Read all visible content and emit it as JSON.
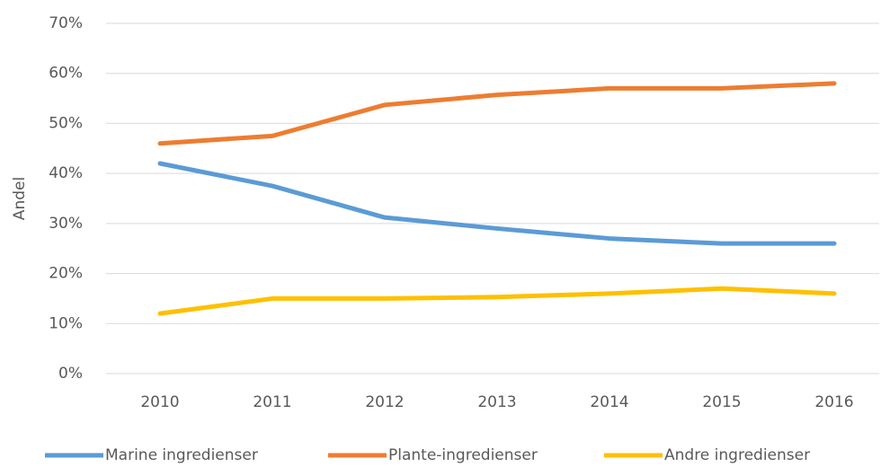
{
  "chart_data": {
    "type": "line",
    "y_label": "Andel",
    "categories": [
      "2010",
      "2011",
      "2012",
      "2013",
      "2014",
      "2015",
      "2016"
    ],
    "series": [
      {
        "name": "Marine ingredienser",
        "color": "#5b9bd5",
        "values": [
          42,
          37.5,
          31.2,
          29,
          27,
          26,
          26
        ]
      },
      {
        "name": "Plante-ingredienser",
        "color": "#ed7d31",
        "values": [
          46,
          47.5,
          53.7,
          55.7,
          57,
          57,
          58
        ]
      },
      {
        "name": "Andre ingredienser",
        "color": "#ffc000",
        "values": [
          12,
          15,
          15,
          15.3,
          16,
          17,
          16
        ]
      }
    ],
    "ylim": [
      0,
      70
    ],
    "yticks": [
      {
        "value": 0,
        "label": "0%"
      },
      {
        "value": 10,
        "label": "10%"
      },
      {
        "value": 20,
        "label": "20%"
      },
      {
        "value": 30,
        "label": "30%"
      },
      {
        "value": 40,
        "label": "40%"
      },
      {
        "value": 50,
        "label": "50%"
      },
      {
        "value": 60,
        "label": "60%"
      },
      {
        "value": 70,
        "label": "70%"
      }
    ],
    "grid": true,
    "legend": "bottom"
  }
}
